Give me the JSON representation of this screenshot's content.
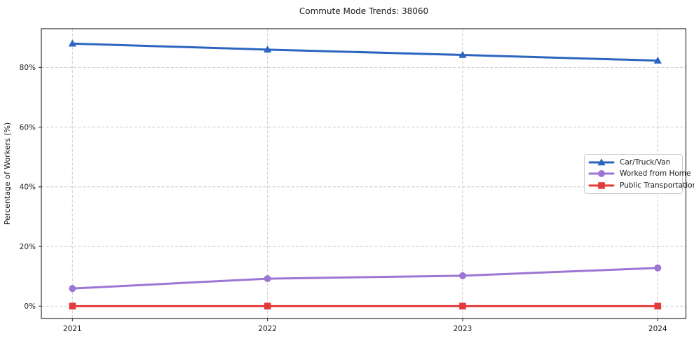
{
  "chart_data": {
    "type": "line",
    "title": "Commute Mode Trends: 38060",
    "xlabel": "",
    "ylabel": "Percentage of Workers (%)",
    "categories": [
      "2021",
      "2022",
      "2023",
      "2024"
    ],
    "series": [
      {
        "name": "Car/Truck/Van",
        "color": "#2c65c0",
        "marker": "triangle",
        "values": [
          88.0,
          86.0,
          84.2,
          82.3
        ]
      },
      {
        "name": "Worked from Home",
        "color": "#9c76d4",
        "marker": "circle",
        "values": [
          5.9,
          9.2,
          10.2,
          12.8
        ]
      },
      {
        "name": "Public Transportation",
        "color": "#e33b3b",
        "marker": "square",
        "values": [
          0.0,
          0.0,
          0.0,
          0.0
        ]
      }
    ],
    "yticks": [
      0,
      20,
      40,
      60,
      80
    ],
    "ytick_labels": [
      "0%",
      "20%",
      "40%",
      "60%",
      "80%"
    ],
    "ylim": [
      -4.15,
      93.0
    ],
    "grid": true,
    "grid_style": "dashed",
    "grid_color": "#c9c9c9",
    "spine_color": "#1a1a1a",
    "text_color": "#1a1a1a",
    "legend": {
      "position": "center-right",
      "border_color": "#cccccc",
      "background": "#ffffff"
    }
  }
}
